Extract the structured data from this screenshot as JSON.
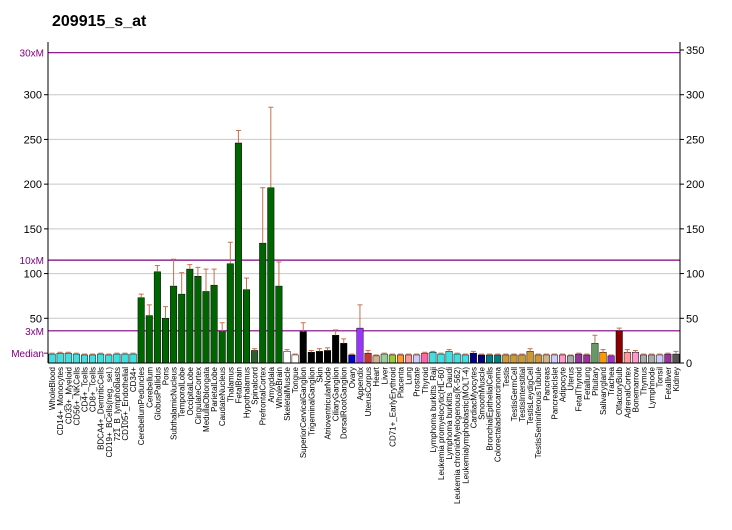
{
  "chart_data": {
    "type": "bar",
    "title": "209915_s_at",
    "categories": [
      "WholeBlood",
      "CD14+_Monocytes",
      "CD33+_Myeloid",
      "CD56+_NKCells",
      "CD4+_Tcells",
      "CD8+_Tcells",
      "BDCA4+_DentriticCells",
      "CD19+_BCells(neg._sel.)",
      "721_B_lymphoblasts",
      "CD105+_Endothelial",
      "CD34+",
      "CerebellumPeduncles",
      "Cerebellum",
      "GlobusPallidus",
      "Pons",
      "SubthalamicNucleus",
      "TemporalLobe",
      "OccipitalLobe",
      "CingulateCortex",
      "MedullaOblongata",
      "ParietalLobe",
      "CaudateNucleus",
      "Thalamus",
      "FetalBrain",
      "Hypothalamus",
      "Spinalcord",
      "PrefrontalCortex",
      "Amygdala",
      "WholeBrain",
      "SkeletalMuscle",
      "Tongue",
      "SuperiorCervicalGanglion",
      "TrigeminalGanglion",
      "Skin",
      "AtrioventricularNode",
      "CiliaryGanglion",
      "DorsalRootGanglion",
      "Ovary",
      "Appendix",
      "UterusCorpus",
      "Heart",
      "Liver",
      "CD71+_EarlyErythroid",
      "Placenta",
      "Lung",
      "Prostate",
      "Thyroid",
      "Lymphoma burkitts_Raji",
      "Leukemia promyelocytic(HL-60)",
      "Lymphoma burkitts_Daudi",
      "Leukemia chronicMyelogenous(K-562)",
      "Leukemialymphoblastic(MOLT-4)",
      "CardiacMyocytes",
      "SmoothMuscle",
      "BronchialEpithelialCells",
      "Colorectaladenocarcinoma",
      "Testis",
      "TestisGermCell",
      "TestisInterstitial",
      "TestisLeydigCell",
      "TestisSeminiferousTubule",
      "Pancreas",
      "PancreaticIslet",
      "Adipocyte",
      "Uterus",
      "FetalThyroid",
      "Fetallung",
      "Pituitary",
      "Salivarygland",
      "Trachea",
      "OlfactoryBulb",
      "AdrenalCortex",
      "Bonemarrow",
      "Thymus",
      "Lymphnode",
      "Tonsil",
      "Fetalliver",
      "Kidney"
    ],
    "values": [
      10,
      11,
      11,
      10,
      9,
      9,
      10,
      9,
      10,
      10,
      10,
      73,
      53,
      102,
      50,
      86,
      77,
      105,
      97,
      80,
      87,
      35,
      111,
      246,
      82,
      14,
      134,
      196,
      86,
      13,
      9,
      35,
      12,
      13,
      14,
      31,
      22,
      9,
      39,
      11,
      8,
      10,
      9,
      9,
      9,
      9,
      11,
      12,
      10,
      13,
      10,
      9,
      11,
      9,
      9,
      9,
      9,
      9,
      9,
      13,
      9,
      9,
      9,
      9,
      8,
      10,
      9,
      22,
      12,
      8,
      36,
      12,
      12,
      9,
      9,
      9,
      10,
      10
    ],
    "errors": [
      1,
      1,
      1,
      1,
      1,
      1,
      1,
      1,
      1,
      1,
      1,
      4,
      12,
      7,
      13,
      30,
      24,
      5,
      10,
      25,
      18,
      10,
      24,
      14,
      13,
      2,
      62,
      90,
      27,
      2,
      1,
      10,
      2,
      3,
      3,
      6,
      5,
      1,
      26,
      3,
      1,
      1,
      1,
      1,
      1,
      1,
      1,
      1,
      1,
      2,
      1,
      1,
      2,
      1,
      1,
      1,
      1,
      1,
      1,
      3,
      1,
      1,
      1,
      1,
      1,
      1,
      1,
      9,
      3,
      1,
      3,
      3,
      2,
      1,
      1,
      1,
      1,
      3
    ],
    "colors": [
      "#40e0e0",
      "#40e0e0",
      "#40e0e0",
      "#40e0e0",
      "#40e0e0",
      "#40e0e0",
      "#40e0e0",
      "#40e0e0",
      "#40e0e0",
      "#40e0e0",
      "#40e0e0",
      "#006400",
      "#006400",
      "#006400",
      "#006400",
      "#006400",
      "#006400",
      "#006400",
      "#006400",
      "#006400",
      "#006400",
      "#006400",
      "#006400",
      "#006400",
      "#006400",
      "#2e5e2e",
      "#006400",
      "#006400",
      "#006400",
      "#ffffff",
      "#ffffff",
      "#000000",
      "#000000",
      "#000000",
      "#000000",
      "#000000",
      "#000000",
      "#0000cc",
      "#9933ff",
      "#cc3333",
      "#d2b48c",
      "#99cc99",
      "#99cc33",
      "#ff9933",
      "#ff9999",
      "#ccccff",
      "#ff66aa",
      "#40e0e0",
      "#40e0e0",
      "#40e0e0",
      "#40e0e0",
      "#40e0e0",
      "#000080",
      "#000080",
      "#008080",
      "#008080",
      "#cc9933",
      "#cc9933",
      "#cc9933",
      "#cc9933",
      "#cc9933",
      "#d2b48c",
      "#ccccff",
      "#ff99cc",
      "#aaaaaa",
      "#993399",
      "#993399",
      "#669966",
      "#ff9900",
      "#9933cc",
      "#8b0000",
      "#ff9999",
      "#ff99cc",
      "#aaaaaa",
      "#aaaaaa",
      "#ccccff",
      "#993399",
      "#555555"
    ],
    "error_color": "#c87050",
    "ylim": [
      0,
      350
    ],
    "yticks": [
      50,
      100,
      150,
      200,
      250,
      300
    ],
    "y2lim": [
      0,
      350
    ],
    "y2ticks": [
      0,
      50,
      100,
      150,
      200,
      250,
      300,
      350
    ],
    "reference_lines": [
      {
        "label": "30xM",
        "value": 347
      },
      {
        "label": "10xM",
        "value": 115
      },
      {
        "label": "3xM",
        "value": 36
      },
      {
        "label": "Median",
        "value": 11
      }
    ],
    "reference_color": "#800080",
    "grid": true
  }
}
